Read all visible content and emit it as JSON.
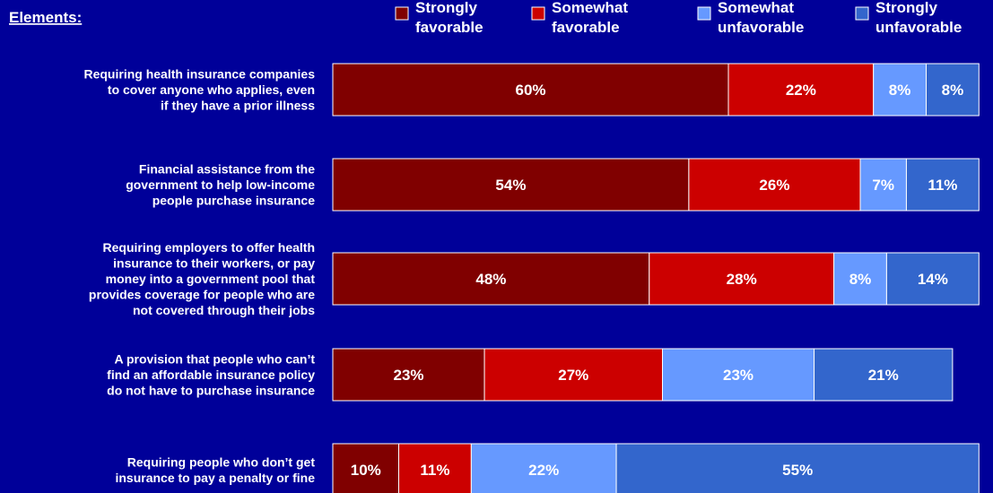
{
  "chart_data": {
    "type": "bar",
    "stacked": true,
    "orientation": "horizontal",
    "header": "Elements:",
    "legend_position": "top",
    "x_range": [
      0,
      100
    ],
    "categories": [
      "Requiring health insurance companies to cover anyone who applies, even if they have a prior illness",
      "Financial assistance from the government to help low-income people purchase insurance",
      "Requiring employers to offer health insurance to their workers, or pay money into a government pool that provides coverage for people who are not covered through their jobs",
      "A provision that people who can’t find an affordable insurance policy do not have to purchase insurance",
      "Requiring people who don’t get insurance to pay a penalty or fine"
    ],
    "category_lines": [
      [
        "Requiring health insurance companies",
        "to cover anyone who applies, even",
        "if they have a prior illness"
      ],
      [
        "Financial assistance from the",
        "government to help low-income",
        "people purchase insurance"
      ],
      [
        "Requiring employers to offer health",
        "insurance to their workers, or pay",
        "money into a government pool that",
        "provides coverage for people who are",
        "not covered through their jobs"
      ],
      [
        "A provision that people who can’t",
        "find an affordable insurance policy",
        "do not have to purchase insurance"
      ],
      [
        "Requiring people who don’t get",
        "insurance to pay a penalty or fine"
      ]
    ],
    "series": [
      {
        "name": "Strongly favorable",
        "name_lines": [
          "Strongly",
          "favorable"
        ],
        "color": "#800000",
        "values": [
          60,
          54,
          48,
          23,
          10
        ]
      },
      {
        "name": "Somewhat favorable",
        "name_lines": [
          "Somewhat",
          "favorable"
        ],
        "color": "#cc0000",
        "values": [
          22,
          26,
          28,
          27,
          11
        ]
      },
      {
        "name": "Somewhat unfavorable",
        "name_lines": [
          "Somewhat",
          "unfavorable"
        ],
        "color": "#6699ff",
        "values": [
          8,
          7,
          8,
          23,
          22
        ]
      },
      {
        "name": "Strongly unfavorable",
        "name_lines": [
          "Strongly",
          "unfavorable"
        ],
        "color": "#3366cc",
        "values": [
          8,
          11,
          14,
          21,
          55
        ]
      }
    ],
    "value_labels": [
      [
        "60%",
        "54%",
        "48%",
        "23%",
        "10%"
      ],
      [
        "22%",
        "26%",
        "28%",
        "27%",
        "11%"
      ],
      [
        "8%",
        "7%",
        "8%",
        "23%",
        "22%"
      ],
      [
        "8%",
        "11%",
        "14%",
        "21%",
        "55%"
      ]
    ],
    "background_color": "#000099",
    "text_color": "#ffffff"
  }
}
